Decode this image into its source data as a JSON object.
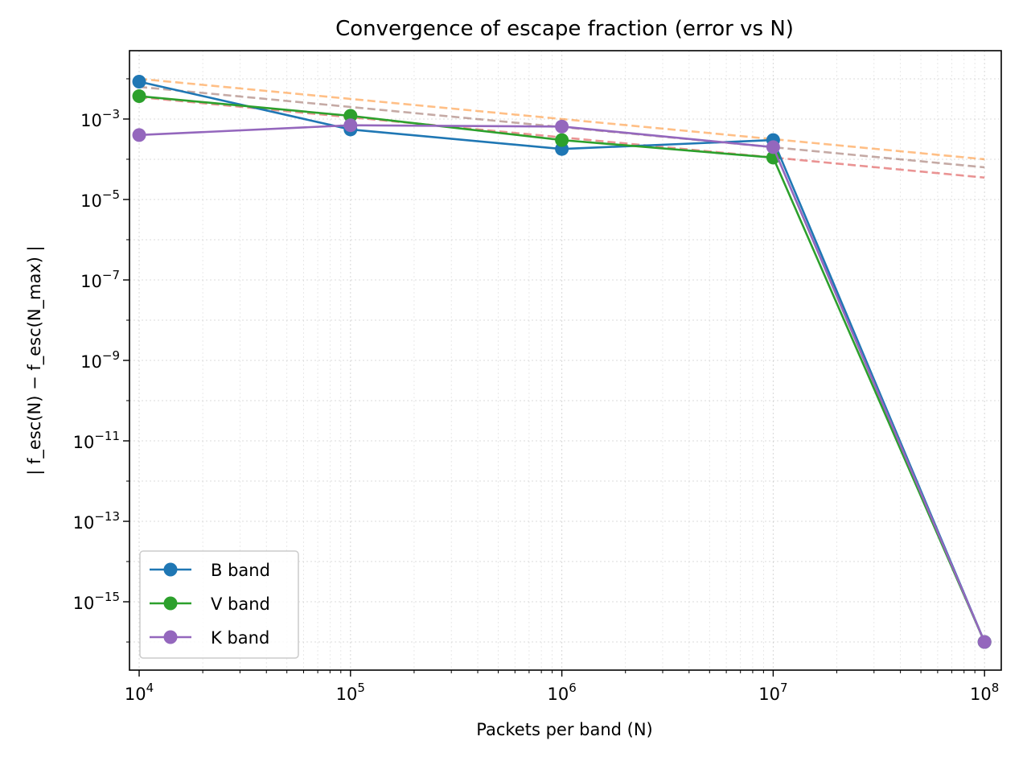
{
  "chart_data": {
    "type": "line",
    "title": "Convergence of escape fraction (error vs N)",
    "xlabel": "Packets per band (N)",
    "ylabel": "| f_esc(N) − f_esc(N_max) |",
    "x_scale": "log",
    "y_scale": "log",
    "xlim": [
      9000,
      120000000
    ],
    "ylim": [
      2e-17,
      0.05
    ],
    "x_ticks": [
      {
        "value": 10000,
        "base": "10",
        "exp": "4"
      },
      {
        "value": 100000,
        "base": "10",
        "exp": "5"
      },
      {
        "value": 1000000,
        "base": "10",
        "exp": "6"
      },
      {
        "value": 10000000,
        "base": "10",
        "exp": "7"
      },
      {
        "value": 100000000,
        "base": "10",
        "exp": "8"
      }
    ],
    "y_ticks": [
      {
        "value": 0.001,
        "base": "10",
        "exp": "−3"
      },
      {
        "value": 1e-05,
        "base": "10",
        "exp": "−5"
      },
      {
        "value": 1e-07,
        "base": "10",
        "exp": "−7"
      },
      {
        "value": 1e-09,
        "base": "10",
        "exp": "−9"
      },
      {
        "value": 1e-11,
        "base": "10",
        "exp": "−11"
      },
      {
        "value": 1e-13,
        "base": "10",
        "exp": "−13"
      },
      {
        "value": 1e-15,
        "base": "10",
        "exp": "−15"
      }
    ],
    "grid": true,
    "legend_position": "lower-left",
    "series": [
      {
        "name": "B band",
        "color": "#1f77b4",
        "x": [
          10000,
          100000,
          1000000,
          10000000,
          100000000
        ],
        "y": [
          0.0085,
          0.00055,
          0.00018,
          0.0003,
          1e-16
        ]
      },
      {
        "name": "V band",
        "color": "#2ca02c",
        "x": [
          10000,
          100000,
          1000000,
          10000000,
          100000000
        ],
        "y": [
          0.0037,
          0.0012,
          0.0003,
          0.00011,
          1e-16
        ]
      },
      {
        "name": "K band",
        "color": "#9467bd",
        "x": [
          10000,
          100000,
          1000000,
          10000000,
          100000000
        ],
        "y": [
          0.0004,
          0.0007,
          0.00065,
          0.0002,
          1e-16
        ]
      }
    ],
    "reference_lines": [
      {
        "color": "#ff7f0e",
        "opacity": 0.5,
        "style": "dashed",
        "x": [
          10000,
          100000000
        ],
        "y": [
          0.01,
          0.0001
        ]
      },
      {
        "color": "#8c564b",
        "opacity": 0.5,
        "style": "dashed",
        "x": [
          10000,
          100000000
        ],
        "y": [
          0.0063,
          6.3e-05
        ]
      },
      {
        "color": "#d62728",
        "opacity": 0.5,
        "style": "dashed",
        "x": [
          10000,
          100000000
        ],
        "y": [
          0.0035,
          3.5e-05
        ]
      }
    ]
  }
}
